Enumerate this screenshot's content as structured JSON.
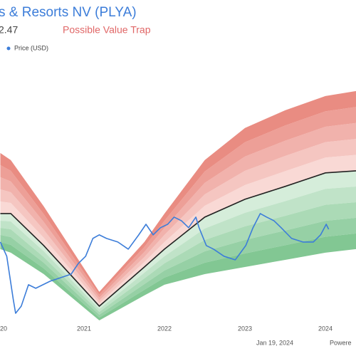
{
  "chart_data": {
    "type": "line",
    "title": "s & Resorts NV (PLYA)",
    "price_label": "2.47",
    "status": "Possible Value Trap",
    "footer": {
      "date": "Jan 19, 2024",
      "credit": "Powere"
    },
    "xlim": [
      2019.956,
      2024.38
    ],
    "ylim": [
      0,
      22
    ],
    "xticks": [
      {
        "value": 2020,
        "label": "20"
      },
      2021,
      2022,
      2023,
      2024
    ],
    "band_x": [
      2019.96,
      2020.09,
      2020.5,
      2021.19,
      2021.75,
      2022.0,
      2022.5,
      2023.0,
      2023.5,
      2024.0,
      2024.38
    ],
    "value_line": {
      "color": "#222222",
      "values": [
        9.83,
        9.83,
        7.32,
        2.57,
        5.64,
        7.04,
        9.55,
        10.95,
        11.96,
        13.02,
        13.18
      ]
    },
    "upper_band": {
      "color": "#e8877d",
      "values": [
        14.58,
        14.02,
        10.39,
        3.69,
        7.6,
        9.83,
        14.02,
        16.54,
        17.93,
        19.05,
        19.44
      ]
    },
    "lower_band": {
      "color": "#7cc48e",
      "values": [
        7.04,
        6.76,
        5.08,
        1.45,
        3.41,
        4.25,
        5.08,
        5.64,
        6.2,
        6.76,
        7.04
      ]
    },
    "series": [
      {
        "name": "Price (USD)",
        "color": "#3c7dd9",
        "x": [
          2019.96,
          2020.04,
          2020.12,
          2020.15,
          2020.22,
          2020.31,
          2020.4,
          2020.49,
          2020.58,
          2020.71,
          2020.84,
          2020.93,
          2021.02,
          2021.11,
          2021.19,
          2021.28,
          2021.42,
          2021.55,
          2021.68,
          2021.77,
          2021.86,
          2021.95,
          2022.04,
          2022.12,
          2022.21,
          2022.3,
          2022.39,
          2022.43,
          2022.52,
          2022.61,
          2022.74,
          2022.88,
          2023.01,
          2023.1,
          2023.19,
          2023.27,
          2023.36,
          2023.45,
          2023.58,
          2023.72,
          2023.85,
          2023.94,
          2024.01,
          2024.04
        ],
        "values": [
          7.6,
          6.48,
          3.13,
          2.01,
          2.57,
          4.25,
          3.97,
          4.25,
          4.53,
          4.8,
          5.08,
          5.92,
          6.48,
          7.88,
          8.16,
          7.88,
          7.6,
          7.04,
          8.16,
          8.99,
          8.16,
          8.72,
          8.99,
          9.55,
          9.27,
          8.72,
          9.55,
          8.72,
          7.32,
          7.04,
          6.48,
          6.2,
          7.32,
          8.72,
          9.83,
          9.55,
          9.27,
          8.72,
          7.88,
          7.6,
          7.6,
          8.16,
          8.99,
          8.6
        ]
      }
    ]
  }
}
